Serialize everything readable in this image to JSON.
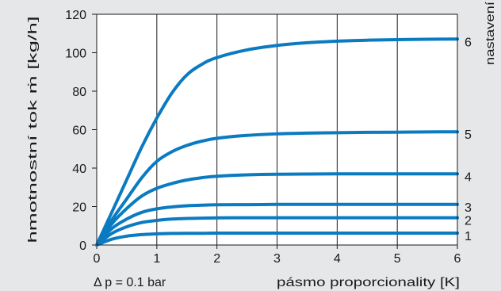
{
  "chart_data": {
    "type": "line",
    "title": "",
    "xlabel": "pásmo proporcionality [K]",
    "ylabel": "hmotnostní tok ṁ [kg/h]",
    "right_label": "nastavení",
    "footnote": "Δ p = 0.1 bar",
    "xlim": [
      0,
      6
    ],
    "ylim": [
      0,
      120
    ],
    "x_ticks": [
      0,
      1,
      2,
      3,
      4,
      5,
      6
    ],
    "y_ticks": [
      0,
      20,
      40,
      60,
      80,
      100,
      120
    ],
    "grid": "vertical",
    "line_color": "#0b7bc1",
    "background": "#ffffff",
    "x": [
      0,
      0.25,
      0.5,
      0.75,
      1,
      1.25,
      1.5,
      1.75,
      2,
      2.5,
      3,
      3.5,
      4,
      4.5,
      5,
      5.5,
      6
    ],
    "series": [
      {
        "name": "1",
        "values": [
          0,
          3,
          4.6,
          5.4,
          5.8,
          6,
          6.1,
          6.1,
          6.2,
          6.2,
          6.2,
          6.2,
          6.2,
          6.2,
          6.2,
          6.2,
          6.2
        ]
      },
      {
        "name": "2",
        "values": [
          0,
          6,
          9.5,
          11.7,
          12.8,
          13.5,
          13.8,
          14,
          14.1,
          14.2,
          14.2,
          14.2,
          14.2,
          14.2,
          14.2,
          14.2,
          14.2
        ]
      },
      {
        "name": "3",
        "values": [
          0,
          8.5,
          13.5,
          17,
          18.8,
          19.8,
          20.4,
          20.7,
          20.9,
          21,
          21.1,
          21.1,
          21.1,
          21.1,
          21.1,
          21.1,
          21.1
        ]
      },
      {
        "name": "4",
        "values": [
          0,
          11,
          19,
          25.5,
          29.5,
          32,
          33.8,
          35,
          35.8,
          36.5,
          36.8,
          36.9,
          37,
          37,
          37,
          37,
          37
        ]
      },
      {
        "name": "5",
        "values": [
          0,
          13,
          24,
          35,
          43.5,
          48.5,
          51.8,
          54,
          55.5,
          57,
          57.8,
          58.2,
          58.4,
          58.6,
          58.7,
          58.8,
          58.9
        ]
      },
      {
        "name": "6",
        "values": [
          0,
          17,
          34,
          51,
          66,
          79,
          88.5,
          94,
          97.5,
          101.5,
          103.8,
          105.2,
          106,
          106.5,
          106.8,
          107,
          107.1
        ]
      }
    ]
  }
}
